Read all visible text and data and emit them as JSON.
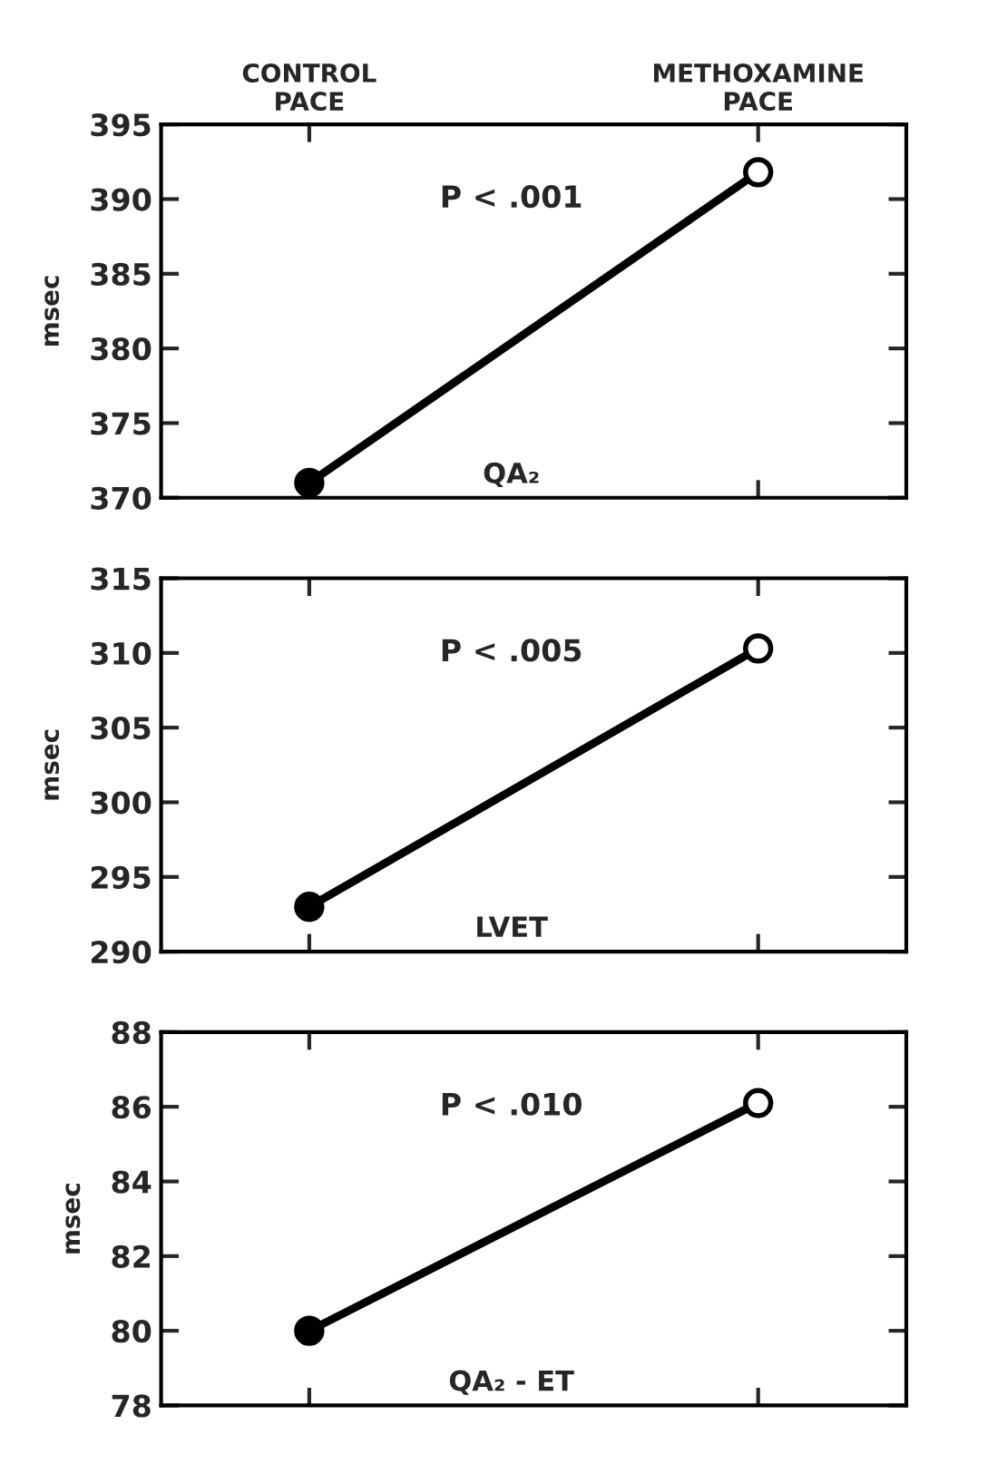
{
  "chart_data": [
    {
      "type": "line",
      "categories": [
        "CONTROL\nPACE",
        "METHOXAMINE\nPACE"
      ],
      "ylabel": "msec",
      "ylim": [
        370,
        395
      ],
      "yticks": [
        370,
        375,
        380,
        385,
        390,
        395
      ],
      "marker": "circle",
      "grid": false,
      "legend": false,
      "series": [
        {
          "color": "#000000",
          "colors": [
            "#000000",
            "#ffffff"
          ],
          "values": [
            371,
            391.8
          ]
        }
      ],
      "annotations": [
        "P < .001",
        "QA₂"
      ]
    },
    {
      "type": "line",
      "categories": [
        null,
        null
      ],
      "ylabel": "msec",
      "ylim": [
        290,
        315
      ],
      "yticks": [
        290,
        295,
        300,
        305,
        310,
        315
      ],
      "marker": "circle",
      "grid": false,
      "legend": false,
      "series": [
        {
          "color": "#000000",
          "colors": [
            "#000000",
            "#ffffff"
          ],
          "values": [
            293,
            310.3
          ]
        }
      ],
      "annotations": [
        "P < .005",
        "LVET"
      ]
    },
    {
      "type": "line",
      "categories": [
        null,
        null
      ],
      "ylabel": "msec",
      "ylim": [
        78,
        88
      ],
      "yticks": [
        78,
        80,
        82,
        84,
        86,
        88
      ],
      "marker": "circle",
      "grid": false,
      "legend": false,
      "series": [
        {
          "color": "#000000",
          "colors": [
            "#000000",
            "#ffffff"
          ],
          "values": [
            80,
            86.1
          ]
        }
      ],
      "annotations": [
        "P < .010",
        "QA₂ - ET"
      ]
    }
  ]
}
